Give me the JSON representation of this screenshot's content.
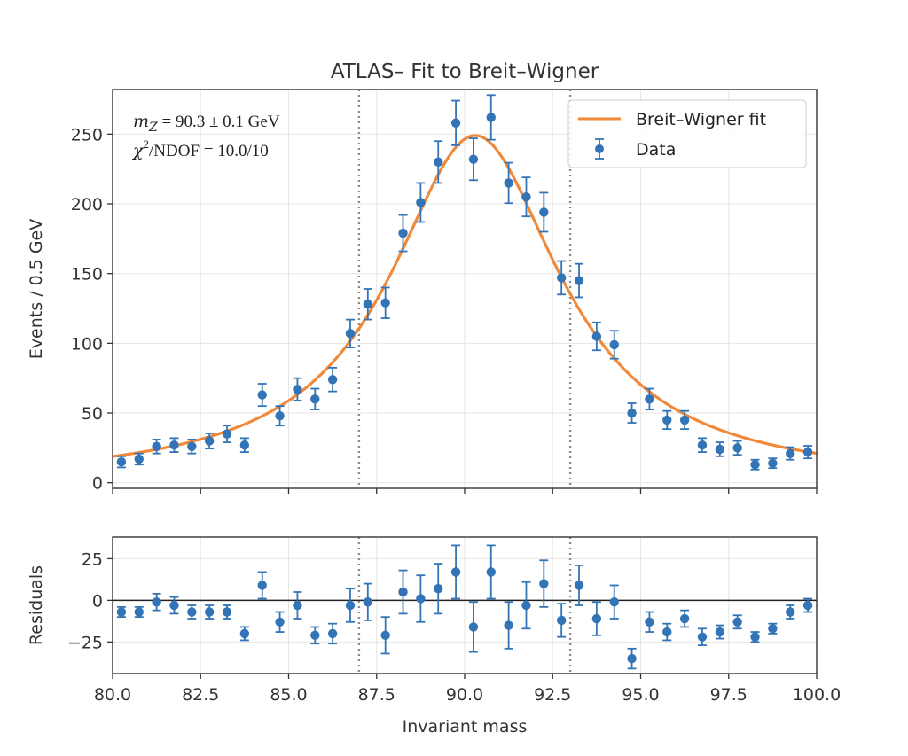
{
  "chart_data": {
    "type": "scatter",
    "title": "ATLAS– Fit to Breit–Wigner",
    "xlabel": "Invariant mass",
    "xlim": [
      80,
      100
    ],
    "x_ticks": [
      "80.0",
      "82.5",
      "85.0",
      "87.5",
      "90.0",
      "92.5",
      "95.0",
      "97.5",
      "100.0"
    ],
    "x_tick_values": [
      80.0,
      82.5,
      85.0,
      87.5,
      90.0,
      92.5,
      95.0,
      97.5,
      100.0
    ],
    "markers_x": [
      87.0,
      93.0
    ],
    "grid": true,
    "legend": {
      "placement": "top-right",
      "entries": [
        {
          "label": "Breit–Wigner fit",
          "type": "line",
          "color": "#f0893a"
        },
        {
          "label": "Data",
          "type": "errorbar",
          "color": "#3274b5"
        }
      ]
    },
    "annotations": {
      "mz_symbol": "m",
      "mz_subscript": "Z",
      "mz_value": " = 90.3 ± 0.1 GeV",
      "chi_symbol": "χ",
      "chi_sup": "2",
      "chi_value": "/NDOF = 10.0/10"
    },
    "top_panel": {
      "ylabel": "Events / 0.5 GeV",
      "ylim": [
        -4,
        282
      ],
      "y_ticks": [
        "0",
        "50",
        "100",
        "150",
        "200",
        "250"
      ],
      "y_tick_values": [
        0,
        50,
        100,
        150,
        200,
        250
      ]
    },
    "bottom_panel": {
      "ylabel": "Residuals",
      "ylim": [
        -44,
        38
      ],
      "y_ticks": [
        "−25",
        "0",
        "25"
      ],
      "y_tick_values": [
        -25,
        0,
        25
      ]
    },
    "fit": {
      "name": "Breit–Wigner fit",
      "model": "Breit-Wigner",
      "peak_mass": 90.3,
      "peak_height": 249,
      "half_width": 2.95,
      "color": "#f0893a"
    },
    "series": [
      {
        "name": "Data",
        "color": "#3274b5",
        "x": [
          80.25,
          80.75,
          81.25,
          81.75,
          82.25,
          82.75,
          83.25,
          83.75,
          84.25,
          84.75,
          85.25,
          85.75,
          86.25,
          86.75,
          87.25,
          87.75,
          88.25,
          88.75,
          89.25,
          89.75,
          90.25,
          90.75,
          91.25,
          91.75,
          92.25,
          92.75,
          93.25,
          93.75,
          94.25,
          94.75,
          95.25,
          95.75,
          96.25,
          96.75,
          97.25,
          97.75,
          98.25,
          98.75,
          99.25,
          99.75
        ],
        "y": [
          15,
          17,
          26,
          27,
          26,
          30,
          35,
          27,
          63,
          48,
          67,
          60,
          74,
          107,
          128,
          129,
          179,
          201,
          230,
          258,
          232,
          262,
          215,
          205,
          194,
          147,
          145,
          105,
          99,
          50,
          60,
          45,
          45,
          27,
          24,
          25,
          13,
          14,
          21,
          22
        ],
        "yerr": [
          4,
          4,
          5,
          5,
          5,
          5.5,
          6,
          5,
          8,
          7,
          8,
          7.5,
          8.5,
          10,
          11,
          11,
          13,
          14,
          15,
          16,
          15,
          16,
          14.5,
          14,
          14,
          12,
          12,
          10,
          10,
          7,
          7.5,
          6.5,
          6.5,
          5,
          5,
          5,
          3.5,
          3.5,
          4.5,
          4.5
        ],
        "residuals": [
          -7,
          -7,
          -1,
          -3,
          -7,
          -7,
          -7,
          -20,
          9,
          -13,
          -3,
          -21,
          -20,
          -3,
          -1,
          -21,
          5,
          1,
          7,
          17,
          -16,
          17,
          -15,
          -3,
          10,
          -12,
          9,
          -11,
          -1,
          -35,
          -13,
          -19,
          -11,
          -22,
          -19,
          -13,
          -22,
          -17,
          -7,
          -3
        ],
        "residual_err": [
          3,
          3,
          5,
          5,
          4,
          4,
          4,
          4,
          8,
          6,
          8,
          5,
          6,
          10,
          11,
          11,
          13,
          14,
          15,
          16,
          15,
          16,
          14,
          14,
          14,
          10,
          12,
          10,
          10,
          6,
          6,
          5,
          5,
          5,
          4,
          4,
          3,
          3,
          4,
          4
        ]
      }
    ]
  }
}
